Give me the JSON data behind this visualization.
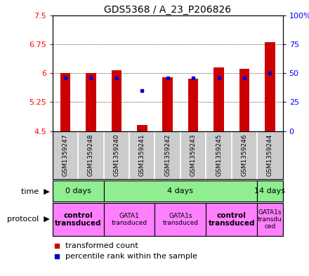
{
  "title": "GDS5368 / A_23_P206826",
  "samples": [
    "GSM1359247",
    "GSM1359248",
    "GSM1359240",
    "GSM1359241",
    "GSM1359242",
    "GSM1359243",
    "GSM1359245",
    "GSM1359246",
    "GSM1359244"
  ],
  "red_values": [
    6.0,
    6.0,
    6.08,
    4.65,
    5.9,
    5.85,
    6.15,
    6.12,
    6.8
  ],
  "blue_values": [
    5.88,
    5.88,
    5.88,
    5.55,
    5.88,
    5.88,
    5.88,
    5.88,
    6.0
  ],
  "ylim_left": [
    4.5,
    7.5
  ],
  "ylim_right": [
    0,
    100
  ],
  "yticks_left": [
    4.5,
    5.25,
    6.0,
    6.75,
    7.5
  ],
  "ytick_labels_left": [
    "4.5",
    "5.25",
    "6",
    "6.75",
    "7.5"
  ],
  "yticks_right": [
    0,
    25,
    50,
    75,
    100
  ],
  "ytick_labels_right": [
    "0",
    "25",
    "50",
    "75",
    "100%"
  ],
  "bar_bottom": 4.5,
  "time_groups": [
    {
      "label": "0 days",
      "start": 0,
      "end": 2,
      "color": "#90ee90"
    },
    {
      "label": "4 days",
      "start": 2,
      "end": 8,
      "color": "#90ee90"
    },
    {
      "label": "14 days",
      "start": 8,
      "end": 9,
      "color": "#90ee90"
    }
  ],
  "protocol_groups": [
    {
      "label": "control\ntransduced",
      "start": 0,
      "end": 2,
      "color": "#ff80ff",
      "bold": true
    },
    {
      "label": "GATA1\ntransduced",
      "start": 2,
      "end": 4,
      "color": "#ff80ff",
      "bold": false
    },
    {
      "label": "GATA1s\ntransduced",
      "start": 4,
      "end": 6,
      "color": "#ff80ff",
      "bold": false
    },
    {
      "label": "control\ntransduced",
      "start": 6,
      "end": 8,
      "color": "#ff80ff",
      "bold": true
    },
    {
      "label": "GATA1s\ntransdu\nced",
      "start": 8,
      "end": 9,
      "color": "#ff80ff",
      "bold": false
    }
  ],
  "red_color": "#cc0000",
  "blue_color": "#0000cc",
  "sample_bg_color": "#cccccc",
  "legend_red": "transformed count",
  "legend_blue": "percentile rank within the sample"
}
